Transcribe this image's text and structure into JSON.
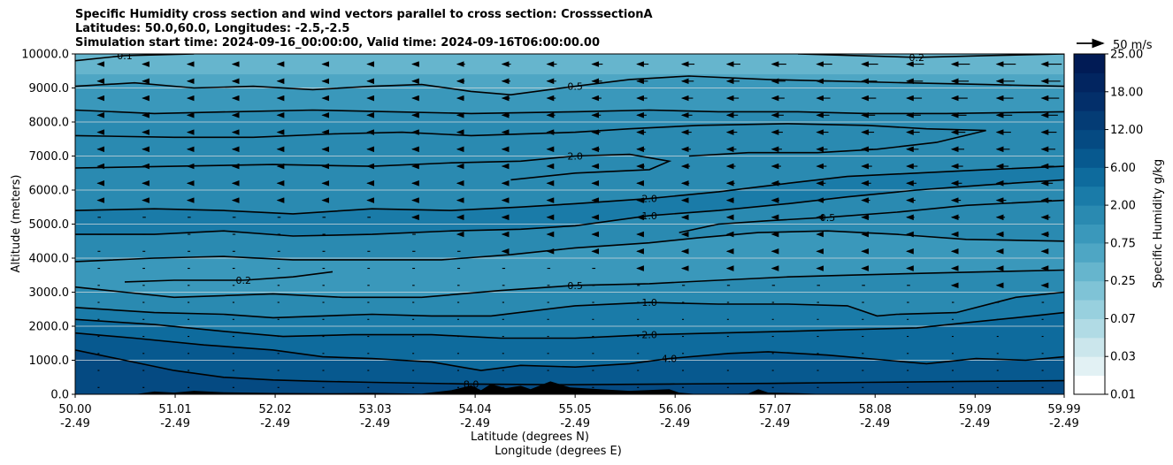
{
  "chart_data": {
    "type": "filled-contour",
    "title_lines": [
      "Specific Humidity cross section and wind vectors parallel to cross section: CrosssectionA",
      "Latitudes: 50.0,60.0, Longitudes: -2.5,-2.5",
      "Simulation start time: 2024-09-16_00:00:00, Valid time: 2024-09-16T06:00:00.00"
    ],
    "ylabel": "Altitude (meters)",
    "xlabel_lines": [
      "Latitude (degrees N)",
      "Longitude (degrees E)"
    ],
    "ylim": [
      0,
      10000
    ],
    "xlim": [
      50.0,
      59.99
    ],
    "y_ticks": [
      "0.0",
      "1000.0",
      "2000.0",
      "3000.0",
      "4000.0",
      "5000.0",
      "6000.0",
      "7000.0",
      "8000.0",
      "9000.0",
      "10000.0"
    ],
    "x_ticks": [
      {
        "lat": "50.00",
        "lon": "-2.49"
      },
      {
        "lat": "51.01",
        "lon": "-2.49"
      },
      {
        "lat": "52.02",
        "lon": "-2.49"
      },
      {
        "lat": "53.03",
        "lon": "-2.49"
      },
      {
        "lat": "54.04",
        "lon": "-2.49"
      },
      {
        "lat": "55.05",
        "lon": "-2.49"
      },
      {
        "lat": "56.06",
        "lon": "-2.49"
      },
      {
        "lat": "57.07",
        "lon": "-2.49"
      },
      {
        "lat": "58.08",
        "lon": "-2.49"
      },
      {
        "lat": "59.09",
        "lon": "-2.49"
      },
      {
        "lat": "59.99",
        "lon": "-2.49"
      }
    ],
    "grid": "horizontal",
    "colorbar": {
      "label": "Specific Humidity g/kg",
      "levels": [
        0.01,
        0.02,
        0.03,
        0.05,
        0.07,
        0.1,
        0.25,
        0.5,
        0.75,
        1.0,
        2.0,
        4.0,
        6.0,
        9.0,
        12.0,
        15.0,
        18.0,
        21.0,
        25.0
      ],
      "tick_labels": [
        "0.01",
        "0.03",
        "0.07",
        "0.25",
        "0.75",
        "2.00",
        "6.00",
        "12.00",
        "18.00",
        "25.00"
      ],
      "colors": [
        "#ffffff",
        "#e2f1f4",
        "#cbe6ec",
        "#b1dbe5",
        "#98d0de",
        "#7fc3d6",
        "#66b5cd",
        "#4ea6c4",
        "#3a98bb",
        "#2a8ab1",
        "#1a7ba8",
        "#0e6b9d",
        "#07598f",
        "#054a82",
        "#043c75",
        "#032f6a",
        "#022560",
        "#011b55"
      ]
    },
    "quiver_key": {
      "label": "50 m/s",
      "speed": 50
    },
    "contour_levels_labeled": [
      "0.1",
      "0.1",
      "0.2",
      "0.5",
      "0.5",
      "2.0",
      "2.0",
      "1.0",
      "0.5",
      "0.2",
      "0.5",
      "1.0",
      "2.0",
      "4.0",
      "8.0"
    ],
    "contours": [
      {
        "level": 8.0,
        "label": "8.0",
        "points": [
          [
            50.0,
            1300
          ],
          [
            50.5,
            1000
          ],
          [
            51.0,
            700
          ],
          [
            51.5,
            500
          ],
          [
            52.0,
            420
          ],
          [
            52.5,
            380
          ],
          [
            53.0,
            350
          ],
          [
            54.0,
            300
          ],
          [
            55.0,
            280
          ],
          [
            56.0,
            300
          ],
          [
            57.0,
            320
          ],
          [
            58.0,
            350
          ],
          [
            59.0,
            380
          ],
          [
            59.99,
            400
          ]
        ]
      },
      {
        "level": 4.0,
        "label": "4.0",
        "points": [
          [
            50.0,
            1800
          ],
          [
            50.6,
            1650
          ],
          [
            51.3,
            1450
          ],
          [
            52.0,
            1300
          ],
          [
            52.5,
            1100
          ],
          [
            53.0,
            1050
          ],
          [
            53.6,
            950
          ],
          [
            54.1,
            700
          ],
          [
            54.5,
            850
          ],
          [
            55.05,
            800
          ],
          [
            55.6,
            900
          ],
          [
            56.0,
            1050
          ],
          [
            56.6,
            1200
          ],
          [
            57.0,
            1250
          ],
          [
            57.6,
            1150
          ],
          [
            58.2,
            1000
          ],
          [
            58.6,
            900
          ],
          [
            59.1,
            1050
          ],
          [
            59.6,
            1000
          ],
          [
            59.99,
            1100
          ]
        ]
      },
      {
        "level": 2.0,
        "label": "2.0",
        "points": [
          [
            50.0,
            2200
          ],
          [
            50.8,
            2050
          ],
          [
            51.5,
            1850
          ],
          [
            52.1,
            1700
          ],
          [
            52.8,
            1750
          ],
          [
            53.6,
            1750
          ],
          [
            54.3,
            1650
          ],
          [
            55.05,
            1650
          ],
          [
            55.8,
            1750
          ],
          [
            56.5,
            1800
          ],
          [
            57.2,
            1850
          ],
          [
            57.8,
            1900
          ],
          [
            58.5,
            1950
          ],
          [
            59.0,
            2100
          ],
          [
            59.5,
            2250
          ],
          [
            59.99,
            2400
          ]
        ]
      },
      {
        "level": 1.0,
        "label": "1.0",
        "points": [
          [
            50.0,
            2550
          ],
          [
            50.8,
            2400
          ],
          [
            51.5,
            2350
          ],
          [
            52.0,
            2250
          ],
          [
            52.5,
            2300
          ],
          [
            53.0,
            2350
          ],
          [
            53.6,
            2300
          ],
          [
            54.2,
            2300
          ],
          [
            55.05,
            2600
          ],
          [
            55.8,
            2700
          ],
          [
            56.5,
            2650
          ],
          [
            57.2,
            2650
          ],
          [
            57.8,
            2600
          ],
          [
            58.1,
            2300
          ],
          [
            58.3,
            2350
          ],
          [
            58.9,
            2400
          ],
          [
            59.5,
            2850
          ],
          [
            59.99,
            3000
          ]
        ]
      },
      {
        "level": 0.5,
        "label": "0.5",
        "points": [
          [
            50.0,
            3150
          ],
          [
            50.5,
            3000
          ],
          [
            51.0,
            2850
          ],
          [
            51.5,
            2900
          ],
          [
            52.0,
            2950
          ],
          [
            52.7,
            2850
          ],
          [
            53.5,
            2850
          ],
          [
            54.3,
            3050
          ],
          [
            55.05,
            3200
          ],
          [
            55.8,
            3250
          ],
          [
            56.5,
            3350
          ],
          [
            57.2,
            3450
          ],
          [
            57.8,
            3500
          ],
          [
            58.5,
            3550
          ],
          [
            59.2,
            3600
          ],
          [
            59.99,
            3650
          ]
        ]
      },
      {
        "level": 0.2,
        "label": "0.2",
        "points": [
          [
            50.5,
            3300
          ],
          [
            51.0,
            3350
          ],
          [
            51.7,
            3350
          ],
          [
            52.2,
            3450
          ],
          [
            52.6,
            3600
          ]
        ]
      },
      {
        "level": 0.5,
        "label": "",
        "points": [
          [
            50.0,
            3900
          ],
          [
            50.8,
            4000
          ],
          [
            51.5,
            4050
          ],
          [
            52.2,
            3950
          ],
          [
            52.9,
            3950
          ],
          [
            53.7,
            3950
          ],
          [
            54.4,
            4100
          ],
          [
            55.05,
            4300
          ],
          [
            55.8,
            4450
          ],
          [
            56.3,
            4600
          ],
          [
            56.9,
            4750
          ],
          [
            57.6,
            4800
          ],
          [
            58.3,
            4700
          ],
          [
            59.0,
            4550
          ],
          [
            59.99,
            4500
          ]
        ]
      },
      {
        "level": 1.0,
        "label": "1.0",
        "points": [
          [
            50.0,
            4700
          ],
          [
            50.8,
            4700
          ],
          [
            51.5,
            4800
          ],
          [
            52.2,
            4650
          ],
          [
            53.0,
            4700
          ],
          [
            53.8,
            4800
          ],
          [
            54.5,
            4850
          ],
          [
            55.05,
            4950
          ],
          [
            55.8,
            5250
          ],
          [
            56.5,
            5400
          ],
          [
            57.2,
            5600
          ],
          [
            57.8,
            5800
          ],
          [
            58.5,
            6000
          ],
          [
            59.2,
            6150
          ],
          [
            59.99,
            6300
          ]
        ]
      },
      {
        "level": 0.5,
        "label": "0.5",
        "points": [
          [
            56.1,
            4750
          ],
          [
            56.5,
            5000
          ],
          [
            57.0,
            5100
          ],
          [
            57.6,
            5200
          ],
          [
            58.3,
            5350
          ],
          [
            59.0,
            5550
          ],
          [
            59.99,
            5700
          ]
        ]
      },
      {
        "level": 2.0,
        "label": "2.0",
        "points": [
          [
            50.0,
            5400
          ],
          [
            50.8,
            5450
          ],
          [
            51.5,
            5400
          ],
          [
            52.2,
            5300
          ],
          [
            53.0,
            5450
          ],
          [
            53.8,
            5400
          ],
          [
            54.5,
            5500
          ],
          [
            55.05,
            5600
          ],
          [
            55.8,
            5750
          ],
          [
            56.5,
            5950
          ],
          [
            57.2,
            6200
          ],
          [
            57.8,
            6400
          ],
          [
            58.5,
            6500
          ],
          [
            59.2,
            6600
          ],
          [
            59.99,
            6700
          ]
        ]
      },
      {
        "level": 2.0,
        "label": "2.0",
        "points": [
          [
            50.0,
            6650
          ],
          [
            51.0,
            6700
          ],
          [
            52.0,
            6750
          ],
          [
            53.0,
            6700
          ],
          [
            53.8,
            6800
          ],
          [
            54.5,
            6850
          ],
          [
            55.05,
            7000
          ],
          [
            55.6,
            7050
          ],
          [
            56.0,
            6850
          ],
          [
            55.8,
            6600
          ],
          [
            55.05,
            6500
          ],
          [
            54.4,
            6300
          ]
        ]
      },
      {
        "level": 0.5,
        "label": "",
        "points": [
          [
            50.0,
            7600
          ],
          [
            51.0,
            7550
          ],
          [
            51.8,
            7550
          ],
          [
            52.6,
            7650
          ],
          [
            53.3,
            7700
          ],
          [
            54.0,
            7600
          ],
          [
            55.05,
            7700
          ],
          [
            55.6,
            7800
          ],
          [
            56.3,
            7900
          ],
          [
            57.2,
            7950
          ],
          [
            58.0,
            7900
          ],
          [
            58.6,
            7800
          ],
          [
            59.2,
            7750
          ],
          [
            58.7,
            7400
          ],
          [
            58.1,
            7200
          ],
          [
            57.5,
            7100
          ],
          [
            56.8,
            7100
          ],
          [
            56.2,
            7000
          ]
        ]
      },
      {
        "level": 0.5,
        "label": "",
        "points": [
          [
            50.0,
            8350
          ],
          [
            50.8,
            8250
          ],
          [
            51.6,
            8300
          ],
          [
            52.4,
            8350
          ],
          [
            53.2,
            8300
          ],
          [
            54.0,
            8250
          ],
          [
            55.05,
            8300
          ],
          [
            55.8,
            8350
          ],
          [
            56.5,
            8300
          ],
          [
            57.3,
            8300
          ],
          [
            58.0,
            8250
          ],
          [
            58.8,
            8250
          ],
          [
            59.99,
            8300
          ]
        ]
      },
      {
        "level": 0.5,
        "label": "0.5",
        "points": [
          [
            50.0,
            9050
          ],
          [
            50.6,
            9150
          ],
          [
            51.2,
            9000
          ],
          [
            51.8,
            9050
          ],
          [
            52.4,
            8950
          ],
          [
            53.0,
            9050
          ],
          [
            53.5,
            9100
          ],
          [
            54.0,
            8900
          ],
          [
            54.4,
            8800
          ],
          [
            55.05,
            9050
          ],
          [
            55.6,
            9250
          ],
          [
            56.2,
            9350
          ],
          [
            57.0,
            9250
          ],
          [
            57.7,
            9200
          ],
          [
            58.4,
            9150
          ],
          [
            59.2,
            9100
          ],
          [
            59.99,
            9050
          ]
        ]
      },
      {
        "level": 0.1,
        "label": "0.1",
        "points": [
          [
            50.0,
            9800
          ],
          [
            50.5,
            9950
          ],
          [
            51.2,
            10000
          ]
        ]
      },
      {
        "level": 0.2,
        "label": "0.2",
        "points": [
          [
            57.3,
            10000
          ],
          [
            57.9,
            9950
          ],
          [
            58.5,
            9900
          ],
          [
            59.2,
            9950
          ],
          [
            59.99,
            10000
          ]
        ]
      }
    ],
    "terrain": [
      [
        50.0,
        0
      ],
      [
        50.6,
        0
      ],
      [
        50.8,
        80
      ],
      [
        51.0,
        50
      ],
      [
        51.2,
        100
      ],
      [
        51.5,
        60
      ],
      [
        52.0,
        40
      ],
      [
        52.5,
        30
      ],
      [
        53.0,
        40
      ],
      [
        53.5,
        20
      ],
      [
        53.8,
        120
      ],
      [
        54.0,
        260
      ],
      [
        54.1,
        120
      ],
      [
        54.2,
        300
      ],
      [
        54.35,
        180
      ],
      [
        54.5,
        250
      ],
      [
        54.6,
        150
      ],
      [
        54.8,
        380
      ],
      [
        55.0,
        200
      ],
      [
        55.3,
        150
      ],
      [
        55.6,
        100
      ],
      [
        56.0,
        150
      ],
      [
        56.1,
        50
      ],
      [
        56.3,
        0
      ],
      [
        56.8,
        20
      ],
      [
        56.9,
        150
      ],
      [
        57.0,
        50
      ],
      [
        57.3,
        30
      ],
      [
        57.6,
        0
      ],
      [
        59.99,
        0
      ]
    ]
  }
}
